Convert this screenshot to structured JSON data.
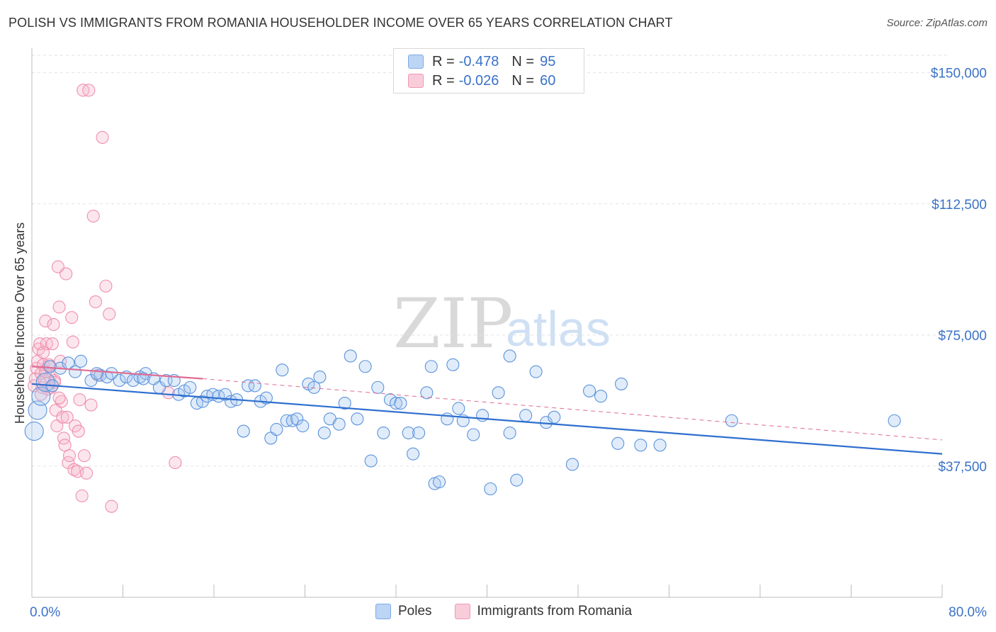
{
  "header": {
    "title": "POLISH VS IMMIGRANTS FROM ROMANIA HOUSEHOLDER INCOME OVER 65 YEARS CORRELATION CHART",
    "source": "Source: ZipAtlas.com"
  },
  "watermark": {
    "part1": "ZIP",
    "part2": "atlas"
  },
  "legend": {
    "rows": [
      {
        "r_label": "R =",
        "r_value": "-0.478",
        "n_label": "N =",
        "n_value": "95",
        "color": "#a8c8f0"
      },
      {
        "r_label": "R =",
        "r_value": "-0.026",
        "n_label": "N =",
        "n_value": "60",
        "color": "#f7b8cb"
      }
    ]
  },
  "bottom_legend": {
    "series": [
      "Poles",
      "Immigrants from Romania"
    ]
  },
  "chart_data": {
    "type": "scatter",
    "ylabel": "Householder Income Over 65 years",
    "xlim": [
      0,
      80
    ],
    "ylim": [
      0,
      155000
    ],
    "x_tick_labels": [
      "0.0%",
      "80.0%"
    ],
    "y_ticks": [
      37500,
      75000,
      112500,
      150000
    ],
    "y_tick_labels": [
      "$37,500",
      "$75,000",
      "$112,500",
      "$150,000"
    ],
    "grid": true,
    "colors": {
      "poles": "#5b93db",
      "romania": "#ef8fae",
      "poles_line": "#2f6fcf",
      "romania_line": "#e06b92"
    },
    "series": [
      {
        "name": "Poles",
        "trend": {
          "x": [
            0,
            80
          ],
          "y": [
            61000,
            41000
          ]
        },
        "points": [
          [
            0.2,
            47500
          ],
          [
            0.5,
            53500
          ],
          [
            0.8,
            57500
          ],
          [
            1.2,
            61500
          ],
          [
            1.8,
            60500
          ],
          [
            2.5,
            65500
          ],
          [
            3.2,
            67000
          ],
          [
            3.8,
            64500
          ],
          [
            4.3,
            67500
          ],
          [
            5.2,
            62000
          ],
          [
            6.0,
            63500
          ],
          [
            6.6,
            63000
          ],
          [
            7.0,
            64000
          ],
          [
            7.7,
            62000
          ],
          [
            8.3,
            63000
          ],
          [
            8.9,
            62000
          ],
          [
            9.5,
            63000
          ],
          [
            10.0,
            64000
          ],
          [
            10.7,
            62500
          ],
          [
            11.2,
            60000
          ],
          [
            11.8,
            62000
          ],
          [
            12.5,
            62000
          ],
          [
            12.9,
            58000
          ],
          [
            13.4,
            59000
          ],
          [
            13.9,
            60000
          ],
          [
            14.5,
            55500
          ],
          [
            15.0,
            56000
          ],
          [
            15.4,
            57500
          ],
          [
            15.9,
            58000
          ],
          [
            16.4,
            57500
          ],
          [
            17.0,
            58000
          ],
          [
            17.5,
            56000
          ],
          [
            18.0,
            56500
          ],
          [
            18.6,
            47500
          ],
          [
            19.0,
            60500
          ],
          [
            19.6,
            60500
          ],
          [
            20.1,
            56000
          ],
          [
            20.6,
            57000
          ],
          [
            21.0,
            45500
          ],
          [
            21.5,
            48000
          ],
          [
            22.0,
            65000
          ],
          [
            22.4,
            50500
          ],
          [
            22.9,
            50500
          ],
          [
            23.3,
            51000
          ],
          [
            23.8,
            49000
          ],
          [
            24.3,
            61000
          ],
          [
            24.8,
            60000
          ],
          [
            25.3,
            63000
          ],
          [
            25.7,
            47000
          ],
          [
            26.2,
            51000
          ],
          [
            27.0,
            49500
          ],
          [
            27.5,
            55500
          ],
          [
            28.0,
            69000
          ],
          [
            28.6,
            51000
          ],
          [
            29.3,
            66000
          ],
          [
            29.8,
            39000
          ],
          [
            30.4,
            60000
          ],
          [
            30.9,
            47000
          ],
          [
            31.5,
            56500
          ],
          [
            32.0,
            55500
          ],
          [
            32.4,
            55500
          ],
          [
            33.1,
            47000
          ],
          [
            33.5,
            41000
          ],
          [
            34.0,
            47000
          ],
          [
            34.7,
            58500
          ],
          [
            35.1,
            66000
          ],
          [
            35.4,
            32500
          ],
          [
            35.8,
            33000
          ],
          [
            36.5,
            51000
          ],
          [
            37.0,
            66500
          ],
          [
            37.5,
            54000
          ],
          [
            37.9,
            50500
          ],
          [
            38.8,
            46500
          ],
          [
            39.6,
            52000
          ],
          [
            40.3,
            31000
          ],
          [
            41.0,
            58500
          ],
          [
            42.0,
            69000
          ],
          [
            42.0,
            47000
          ],
          [
            42.6,
            33500
          ],
          [
            43.4,
            52000
          ],
          [
            44.3,
            64500
          ],
          [
            45.2,
            50000
          ],
          [
            45.9,
            51500
          ],
          [
            47.5,
            38000
          ],
          [
            49.0,
            59000
          ],
          [
            50.0,
            57500
          ],
          [
            51.5,
            44000
          ],
          [
            51.8,
            61000
          ],
          [
            53.5,
            43500
          ],
          [
            55.2,
            43500
          ],
          [
            61.5,
            50500
          ],
          [
            75.8,
            50500
          ],
          [
            1.6,
            66000
          ],
          [
            5.7,
            64000
          ],
          [
            9.8,
            62500
          ]
        ]
      },
      {
        "name": "Immigrants from Romania",
        "trend": {
          "x": [
            0,
            15
          ],
          "y": [
            66000,
            62500
          ]
        },
        "points": [
          [
            0.2,
            60500
          ],
          [
            0.3,
            62500
          ],
          [
            0.4,
            65500
          ],
          [
            0.5,
            67500
          ],
          [
            0.6,
            71000
          ],
          [
            0.7,
            72500
          ],
          [
            0.8,
            64000
          ],
          [
            0.9,
            60000
          ],
          [
            1.0,
            66500
          ],
          [
            1.1,
            62000
          ],
          [
            1.2,
            79000
          ],
          [
            1.3,
            72500
          ],
          [
            1.4,
            59500
          ],
          [
            1.5,
            66000
          ],
          [
            1.6,
            63000
          ],
          [
            1.7,
            60000
          ],
          [
            1.8,
            72500
          ],
          [
            1.9,
            78000
          ],
          [
            2.0,
            62000
          ],
          [
            2.1,
            53500
          ],
          [
            2.2,
            49000
          ],
          [
            2.3,
            94500
          ],
          [
            2.4,
            83000
          ],
          [
            2.5,
            67500
          ],
          [
            2.6,
            56000
          ],
          [
            2.7,
            51500
          ],
          [
            2.8,
            45500
          ],
          [
            2.9,
            43500
          ],
          [
            3.0,
            92500
          ],
          [
            3.1,
            51500
          ],
          [
            3.2,
            38500
          ],
          [
            3.3,
            40500
          ],
          [
            3.5,
            80000
          ],
          [
            3.6,
            73000
          ],
          [
            3.7,
            36500
          ],
          [
            3.8,
            49000
          ],
          [
            4.0,
            36000
          ],
          [
            4.1,
            47500
          ],
          [
            4.2,
            56500
          ],
          [
            4.4,
            29000
          ],
          [
            4.5,
            145000
          ],
          [
            4.6,
            40500
          ],
          [
            4.8,
            35500
          ],
          [
            5.0,
            145000
          ],
          [
            5.2,
            55000
          ],
          [
            5.4,
            109000
          ],
          [
            5.6,
            84500
          ],
          [
            5.8,
            63500
          ],
          [
            6.2,
            131500
          ],
          [
            6.5,
            89000
          ],
          [
            6.8,
            81000
          ],
          [
            7.0,
            26000
          ],
          [
            1.0,
            70000
          ],
          [
            1.5,
            66500
          ],
          [
            2.0,
            61500
          ],
          [
            2.4,
            57000
          ],
          [
            12.0,
            58500
          ],
          [
            12.6,
            38500
          ],
          [
            0.8,
            58000
          ],
          [
            1.2,
            64500
          ]
        ]
      }
    ]
  }
}
